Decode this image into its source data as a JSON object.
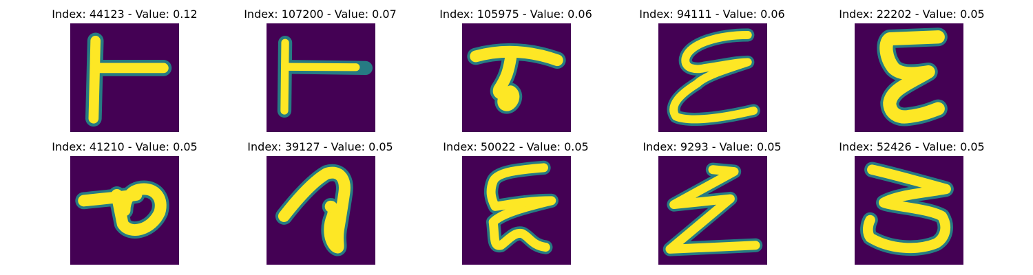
{
  "colors": {
    "background": "#440154",
    "stroke": "#fde725",
    "edge": "#21918c"
  },
  "panels": [
    {
      "title": "Index: 44123 - Value: 0.12",
      "glyph": "T-rotated"
    },
    {
      "title": "Index: 107200 - Value: 0.07",
      "glyph": "T-rotated-thin"
    },
    {
      "title": "Index: 105975 - Value: 0.06",
      "glyph": "T-curl"
    },
    {
      "title": "Index: 94111 - Value: 0.06",
      "glyph": "E-cursive"
    },
    {
      "title": "Index: 22202 - Value: 0.05",
      "glyph": "E-bold"
    },
    {
      "title": "Index: 41210 - Value: 0.05",
      "glyph": "P-rotated"
    },
    {
      "title": "Index: 39127 - Value: 0.05",
      "glyph": "loop"
    },
    {
      "title": "Index: 50022 - Value: 0.05",
      "glyph": "E-squiggle"
    },
    {
      "title": "Index: 9293 - Value: 0.05",
      "glyph": "Z-zigzag"
    },
    {
      "title": "Index: 52426 - Value: 0.05",
      "glyph": "3-rotated"
    }
  ]
}
